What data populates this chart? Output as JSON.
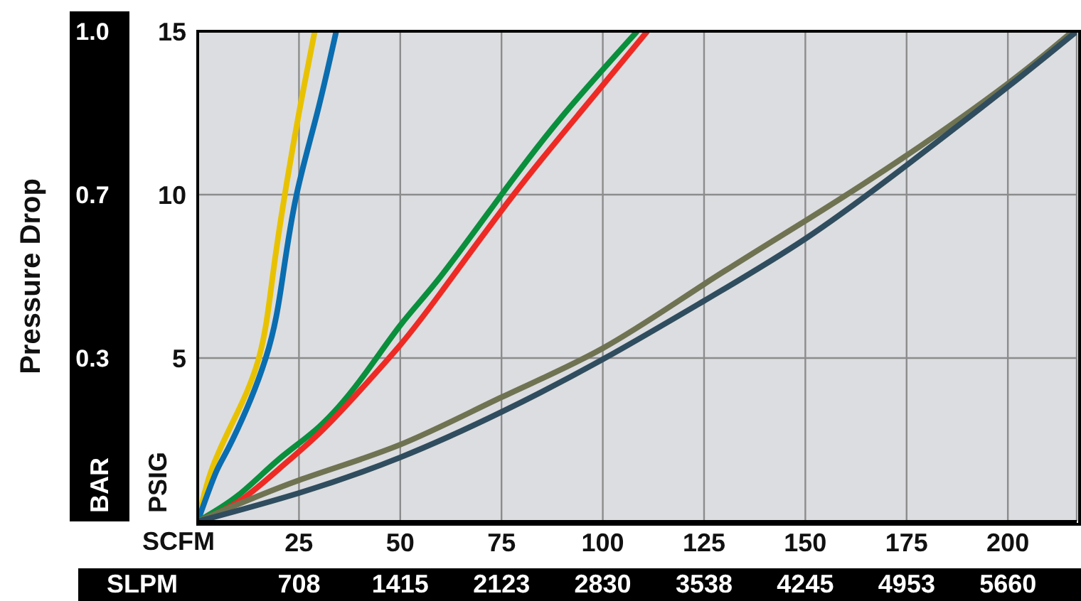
{
  "chart_data": {
    "type": "line",
    "ylabel": "PSIG",
    "y2label": "BAR",
    "xlabel": "SCFM",
    "x2label": "SLPM",
    "annotations": [
      "Pressure Drop"
    ],
    "xlim": [
      0,
      217
    ],
    "xticks": [
      25,
      50,
      75,
      100,
      125,
      150,
      175,
      200
    ],
    "x2lim": [
      0,
      6141
    ],
    "x2ticks": [
      708,
      1415,
      2123,
      2830,
      3538,
      4245,
      4953,
      5660
    ],
    "ylim": [
      0,
      15
    ],
    "yticks": [
      5,
      10,
      15
    ],
    "y2lim": [
      0,
      1.034
    ],
    "y2ticks": [
      {
        "value": 0.345,
        "label": "0.3"
      },
      {
        "value": 0.689,
        "label": "0.7"
      },
      {
        "value": 1.034,
        "label": "1.0"
      }
    ],
    "grid": true,
    "marker": "none",
    "line_style": "solid",
    "series": [
      {
        "color": "#e8c200",
        "x": [
          0,
          3.2,
          8.5,
          15.1,
          18.5,
          21.5,
          25,
          28.9
        ],
        "values": [
          0,
          1.5,
          3,
          5,
          7.5,
          10,
          12.5,
          15
        ]
      },
      {
        "color": "#0a6db0",
        "x": [
          0,
          4.5,
          8.6,
          16.8,
          21,
          24.4,
          29.5,
          34.2
        ],
        "values": [
          0,
          1.5,
          2.5,
          5,
          7.5,
          10,
          12.5,
          15
        ]
      },
      {
        "color": "#0a8f3c",
        "x": [
          0,
          10,
          20,
          30,
          40,
          50,
          60,
          75,
          90,
          108.5
        ],
        "values": [
          0,
          0.8,
          1.9,
          2.9,
          4.3,
          6,
          7.5,
          10,
          12.4,
          15
        ]
      },
      {
        "color": "#ee2a24",
        "x": [
          0,
          10,
          20,
          30,
          40,
          50,
          60,
          78,
          95,
          111
        ],
        "values": [
          0,
          0.6,
          1.6,
          2.7,
          4,
          5.4,
          7,
          10,
          12.6,
          15
        ]
      },
      {
        "color": "#6f7352",
        "x": [
          0,
          25,
          50,
          75,
          100,
          125,
          150,
          175,
          200,
          216
        ],
        "values": [
          0,
          1.26,
          2.35,
          3.8,
          5.3,
          7.26,
          9.2,
          11.2,
          13.4,
          15
        ]
      },
      {
        "color": "#2f4d5e",
        "x": [
          0,
          25,
          50,
          75,
          100,
          125,
          150,
          175,
          200,
          217
        ],
        "values": [
          0,
          0.87,
          1.96,
          3.35,
          4.96,
          6.75,
          8.65,
          10.9,
          13.3,
          15
        ]
      }
    ]
  }
}
